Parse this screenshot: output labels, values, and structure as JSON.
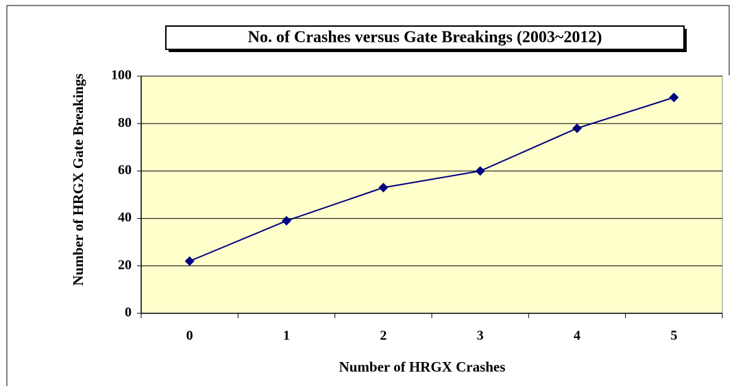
{
  "chart_data": {
    "type": "line",
    "title": "No. of Crashes versus Gate Breakings (2003~2012)",
    "x_label": "Number of HRGX Crashes",
    "y_label": "Number of HRGX Gate Breakings",
    "categories": [
      "0",
      "1",
      "2",
      "3",
      "4",
      "5"
    ],
    "values": [
      22,
      39,
      53,
      60,
      78,
      91
    ],
    "color": "#000080",
    "ylim": [
      0,
      100
    ],
    "yticks": [
      0,
      20,
      40,
      60,
      80,
      100
    ],
    "grid": true
  }
}
